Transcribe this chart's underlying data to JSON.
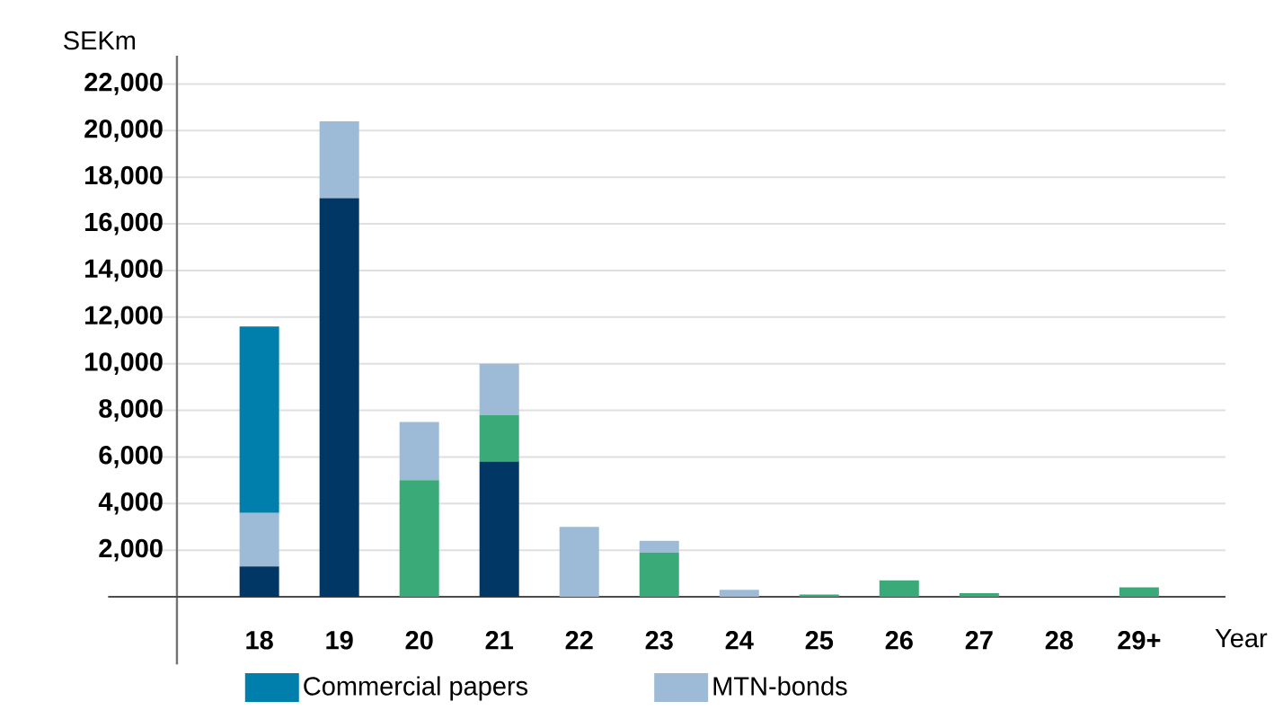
{
  "chart_data": {
    "type": "bar",
    "stacked": true,
    "ylabel": "SEKm",
    "xlabel": "Year",
    "categories": [
      "18",
      "19",
      "20",
      "21",
      "22",
      "23",
      "24",
      "25",
      "26",
      "27",
      "28",
      "29+"
    ],
    "series": [
      {
        "color": "#003764",
        "values": [
          1300,
          17100,
          0,
          5800,
          0,
          0,
          0,
          0,
          0,
          0,
          0,
          0
        ]
      },
      {
        "color": "#3aaa78",
        "values": [
          0,
          0,
          5000,
          2000,
          0,
          1900,
          0,
          100,
          700,
          150,
          0,
          400
        ]
      },
      {
        "name": "MTN-bonds",
        "color": "#9dbbd6",
        "values": [
          2300,
          3300,
          2500,
          2200,
          3000,
          500,
          300,
          0,
          0,
          0,
          0,
          0
        ]
      },
      {
        "name": "Commercial papers",
        "color": "#007eac",
        "values": [
          8000,
          0,
          0,
          0,
          0,
          0,
          0,
          0,
          0,
          0,
          0,
          0
        ]
      }
    ],
    "ylim": [
      0,
      22000
    ],
    "yticks": [
      {
        "value": 2000,
        "label": "2,000"
      },
      {
        "value": 4000,
        "label": "4,000"
      },
      {
        "value": 6000,
        "label": "6,000"
      },
      {
        "value": 8000,
        "label": "8,000"
      },
      {
        "value": 10000,
        "label": "10,000"
      },
      {
        "value": 12000,
        "label": "12,000"
      },
      {
        "value": 14000,
        "label": "14,000"
      },
      {
        "value": 16000,
        "label": "16,000"
      },
      {
        "value": 18000,
        "label": "18,000"
      },
      {
        "value": 20000,
        "label": "20,000"
      },
      {
        "value": 22000,
        "label": "22,000"
      }
    ],
    "grid": "y",
    "legend": "bottom"
  }
}
